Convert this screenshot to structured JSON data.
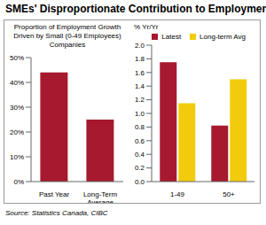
{
  "title": "SMEs' Disproportionate Contribution to Employment",
  "source": "Source: Statistics Canada, CIBC",
  "chart_data": [
    {
      "type": "bar",
      "title": "Proportion of Employment Growth Driven by Small (0-49 Employees) Companies",
      "categories": [
        "Past Year",
        "Long-Term Average"
      ],
      "values": [
        44,
        25
      ],
      "color": "#a6192e",
      "ylim": [
        0,
        50
      ],
      "yticks": [
        {
          "value": 0,
          "label": "0%"
        },
        {
          "value": 10,
          "label": "10%"
        },
        {
          "value": 20,
          "label": "20%"
        },
        {
          "value": 30,
          "label": "30%"
        },
        {
          "value": 40,
          "label": "40%"
        },
        {
          "value": 50,
          "label": "50%"
        }
      ],
      "grid": false
    },
    {
      "type": "bar",
      "ylabel": "% Yr/Yr",
      "categories": [
        "1-49",
        "50+"
      ],
      "series": [
        {
          "name": "Latest",
          "color": "#a6192e",
          "values": [
            1.75,
            0.82
          ]
        },
        {
          "name": "Long-term Avg",
          "color": "#f2cc0c",
          "values": [
            1.15,
            1.5
          ]
        }
      ],
      "ylim": [
        0,
        2
      ],
      "yticks": [
        {
          "value": 0,
          "label": "0.0"
        },
        0.2,
        0.4,
        0.6,
        0.8,
        {
          "value": 1,
          "label": "1.0"
        },
        1.2,
        1.4,
        1.6,
        1.8,
        {
          "value": 2,
          "label": "2.0"
        }
      ],
      "grid": false,
      "legend": "top-right"
    }
  ]
}
